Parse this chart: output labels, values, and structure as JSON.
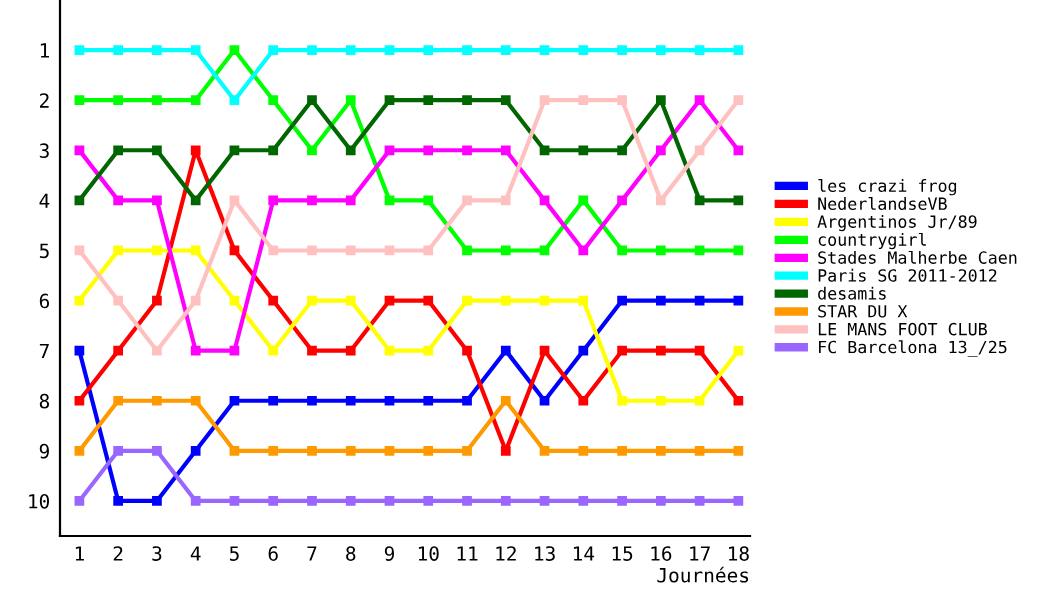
{
  "chart_data": {
    "type": "line",
    "xlabel": "Journées",
    "x": [
      1,
      2,
      3,
      4,
      5,
      6,
      7,
      8,
      9,
      10,
      11,
      12,
      13,
      14,
      15,
      16,
      17,
      18
    ],
    "xlim": [
      0.5,
      18.3
    ],
    "xticks": [
      1,
      2,
      3,
      4,
      5,
      6,
      7,
      8,
      9,
      10,
      11,
      12,
      13,
      14,
      15,
      16,
      17,
      18
    ],
    "ylim": [
      10.7,
      0
    ],
    "yticks": [
      1,
      2,
      3,
      4,
      5,
      6,
      7,
      8,
      9,
      10
    ],
    "grid": false,
    "legend": "right",
    "marker": "square",
    "line_style": "solid",
    "series": [
      {
        "name": "les crazi frog",
        "color": "#0000ff",
        "values": [
          7,
          10,
          10,
          9,
          8,
          8,
          8,
          8,
          8,
          8,
          8,
          7,
          8,
          7,
          6,
          6,
          6,
          6
        ]
      },
      {
        "name": "NederlandseVB",
        "color": "#ff0000",
        "values": [
          8,
          7,
          6,
          3,
          5,
          6,
          7,
          7,
          6,
          6,
          7,
          9,
          7,
          8,
          7,
          7,
          7,
          8
        ]
      },
      {
        "name": "Argentinos Jr/89",
        "color": "#ffff00",
        "values": [
          6,
          5,
          5,
          5,
          6,
          7,
          6,
          6,
          7,
          7,
          6,
          6,
          6,
          6,
          8,
          8,
          8,
          7
        ]
      },
      {
        "name": "countrygirl",
        "color": "#00ff00",
        "values": [
          2,
          2,
          2,
          2,
          1,
          2,
          3,
          2,
          4,
          4,
          5,
          5,
          5,
          4,
          5,
          5,
          5,
          5
        ]
      },
      {
        "name": "Stades Malherbe Caen",
        "color": "#ff00ff",
        "values": [
          3,
          4,
          4,
          7,
          7,
          4,
          4,
          4,
          3,
          3,
          3,
          3,
          4,
          5,
          4,
          3,
          2,
          3
        ]
      },
      {
        "name": "Paris SG 2011-2012",
        "color": "#00ffff",
        "values": [
          1,
          1,
          1,
          1,
          2,
          1,
          1,
          1,
          1,
          1,
          1,
          1,
          1,
          1,
          1,
          1,
          1,
          1
        ]
      },
      {
        "name": "desamis",
        "color": "#006600",
        "values": [
          4,
          3,
          3,
          4,
          3,
          3,
          2,
          3,
          2,
          2,
          2,
          2,
          3,
          3,
          3,
          2,
          4,
          4
        ]
      },
      {
        "name": "STAR DU X",
        "color": "#ff9900",
        "values": [
          9,
          8,
          8,
          8,
          9,
          9,
          9,
          9,
          9,
          9,
          9,
          8,
          9,
          9,
          9,
          9,
          9,
          9
        ]
      },
      {
        "name": "LE MANS FOOT CLUB",
        "color": "#ffc0c0",
        "values": [
          5,
          6,
          7,
          6,
          4,
          5,
          5,
          5,
          5,
          5,
          4,
          4,
          2,
          2,
          2,
          4,
          3,
          2
        ]
      },
      {
        "name": "FC Barcelona 13_/25",
        "color": "#9966ff",
        "values": [
          10,
          9,
          9,
          10,
          10,
          10,
          10,
          10,
          10,
          10,
          10,
          10,
          10,
          10,
          10,
          10,
          10,
          10
        ]
      }
    ]
  }
}
